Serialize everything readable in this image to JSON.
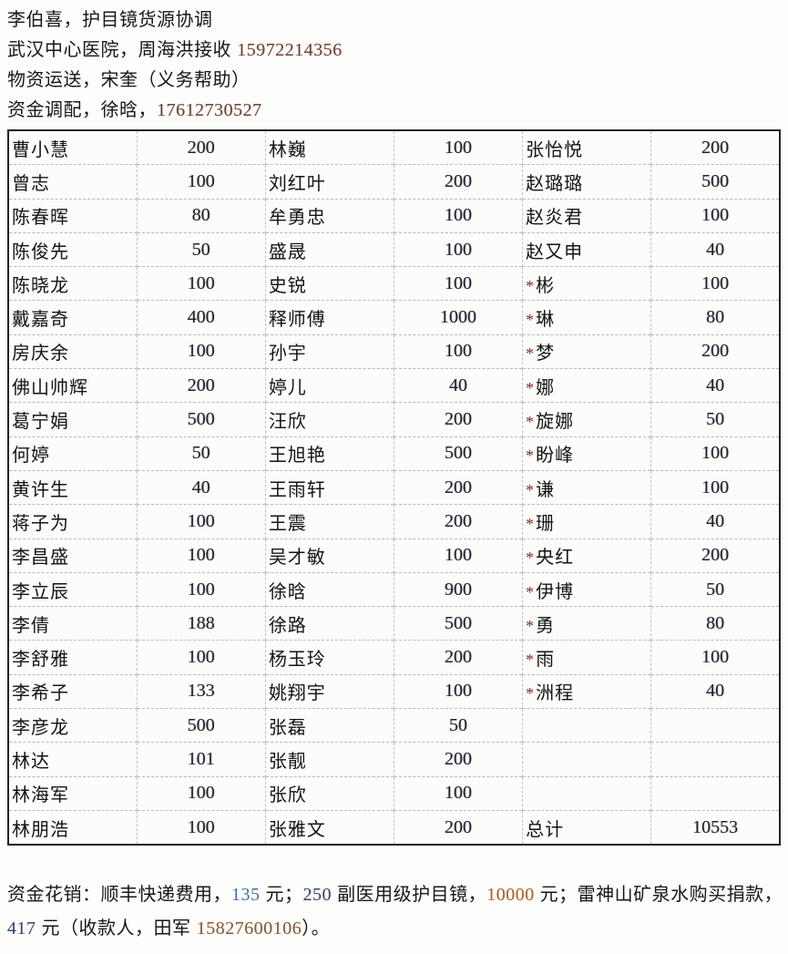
{
  "colors": {
    "page_background": "#fdfdfc",
    "text": "#161616",
    "phone_number": "#7c3a28",
    "table_border": "#222222",
    "table_gridline": "#bbbbbb",
    "amount_text": "#22222c",
    "asterisk": "#7a3320",
    "footer_num_blue": "#3a6fae",
    "footer_num_navy": "#2e4a6e",
    "footer_num_orange": "#b5651d",
    "footer_num_brown": "#91582a"
  },
  "header": {
    "lines": [
      {
        "segments": [
          {
            "text": "李伯喜，护目镜货源协调",
            "style": "text"
          }
        ]
      },
      {
        "segments": [
          {
            "text": "武汉中心医院，周海洪接收 ",
            "style": "text"
          },
          {
            "text": "15972214356",
            "style": "phone"
          }
        ]
      },
      {
        "segments": [
          {
            "text": "物资运送，宋奎（义务帮助）",
            "style": "text"
          }
        ]
      },
      {
        "segments": [
          {
            "text": "资金调配，徐晗，",
            "style": "text"
          },
          {
            "text": "17612730527",
            "style": "phone"
          }
        ]
      }
    ]
  },
  "table": {
    "description": "donation list, three name/amount column pairs, 21 rows",
    "total_label": "总计",
    "total_value": "10553",
    "rows": [
      [
        "曹小慧",
        "200",
        "林巍",
        "100",
        "张怡悦",
        "200"
      ],
      [
        "曾志",
        "100",
        "刘红叶",
        "200",
        "赵璐璐",
        "500"
      ],
      [
        "陈春晖",
        "80",
        "牟勇忠",
        "100",
        "赵炎君",
        "100"
      ],
      [
        "陈俊先",
        "50",
        "盛晟",
        "100",
        "赵又申",
        "40"
      ],
      [
        "陈晓龙",
        "100",
        "史锐",
        "100",
        "*彬",
        "100"
      ],
      [
        "戴嘉奇",
        "400",
        "释师傅",
        "1000",
        "*琳",
        "80"
      ],
      [
        "房庆余",
        "100",
        "孙宇",
        "100",
        "*梦",
        "200"
      ],
      [
        "佛山帅辉",
        "200",
        "婷儿",
        "40",
        "*娜",
        "40"
      ],
      [
        "葛宁娟",
        "500",
        "汪欣",
        "200",
        "*旋娜",
        "50"
      ],
      [
        "何婷",
        "50",
        "王旭艳",
        "500",
        "*盼峰",
        "100"
      ],
      [
        "黄许生",
        "40",
        "王雨轩",
        "200",
        "*谦",
        "100"
      ],
      [
        "蒋子为",
        "100",
        "王震",
        "200",
        "*珊",
        "40"
      ],
      [
        "李昌盛",
        "100",
        "吴才敏",
        "100",
        "*央红",
        "200"
      ],
      [
        "李立辰",
        "100",
        "徐晗",
        "900",
        "*伊博",
        "50"
      ],
      [
        "李倩",
        "188",
        "徐路",
        "500",
        "*勇",
        "80"
      ],
      [
        "李舒雅",
        "100",
        "杨玉玲",
        "200",
        "*雨",
        "100"
      ],
      [
        "李希子",
        "133",
        "姚翔宇",
        "100",
        "*洲程",
        "40"
      ],
      [
        "李彦龙",
        "500",
        "张磊",
        "50",
        "",
        ""
      ],
      [
        "林达",
        "101",
        "张靓",
        "200",
        "",
        ""
      ],
      [
        "林海军",
        "100",
        "张欣",
        "100",
        "",
        ""
      ],
      [
        "林朋浩",
        "100",
        "张雅文",
        "200",
        "总计",
        "10553"
      ]
    ]
  },
  "footer": {
    "segments": [
      {
        "text": "资金花销：顺丰快递费用，",
        "style": "text"
      },
      {
        "text": "135",
        "style": "num-blue"
      },
      {
        "text": " 元；",
        "style": "text"
      },
      {
        "text": "250",
        "style": "num-navy"
      },
      {
        "text": " 副医用级护目镜，",
        "style": "text"
      },
      {
        "text": "10000",
        "style": "num-orange"
      },
      {
        "text": " 元；雷神山矿泉水购买捐款，",
        "style": "text"
      },
      {
        "text": "417",
        "style": "num-navy"
      },
      {
        "text": " 元（收款人，田军 ",
        "style": "text"
      },
      {
        "text": "15827600106",
        "style": "num-brown"
      },
      {
        "text": "）。",
        "style": "text"
      }
    ]
  }
}
